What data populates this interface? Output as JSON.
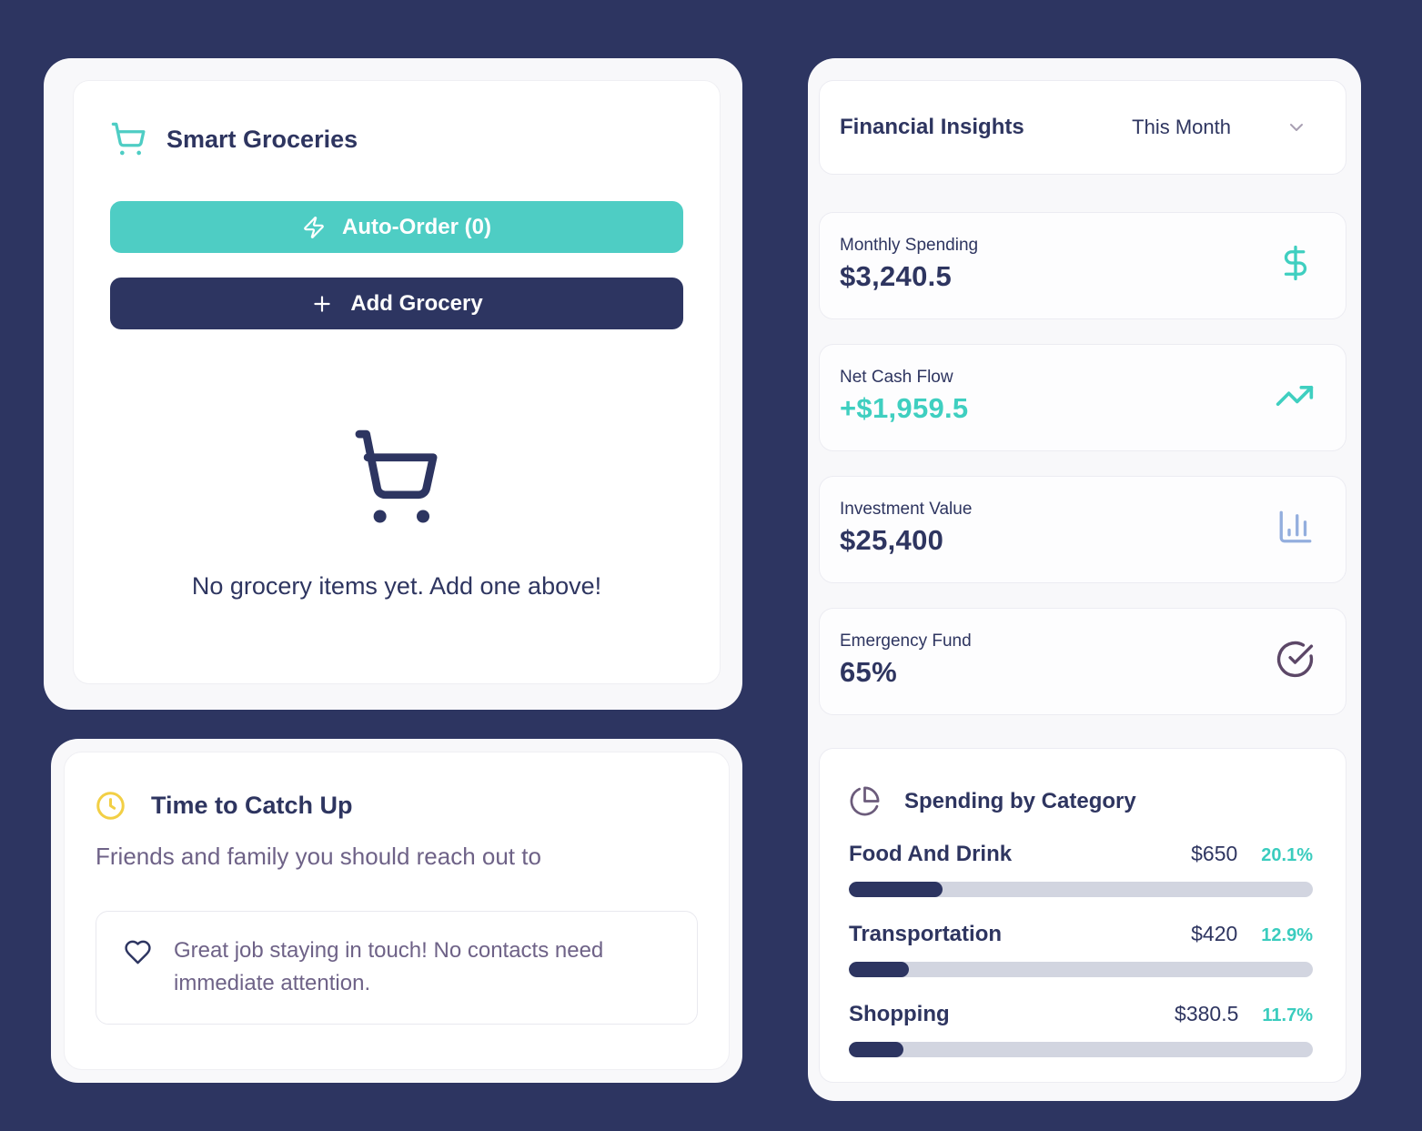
{
  "colors": {
    "background": "#2d3561",
    "teal": "#4ecdc4",
    "navy": "#2e3560",
    "purple_text": "#6e6287",
    "yellow": "#f2cf45",
    "periwinkle": "#93aede",
    "plum": "#5c4767",
    "bar_track": "#d2d5e0",
    "percent_teal": "#3accbe"
  },
  "groceries": {
    "title": "Smart Groceries",
    "auto_order_label": "Auto-Order (0)",
    "add_grocery_label": "Add Grocery",
    "empty_message": "No grocery items yet. Add one above!"
  },
  "catchup": {
    "title": "Time to Catch Up",
    "subtitle": "Friends and family you should reach out to",
    "message": "Great job staying in touch! No contacts need immediate attention."
  },
  "insights": {
    "title": "Financial Insights",
    "period": "This Month",
    "stats": [
      {
        "label": "Monthly Spending",
        "value": "$3,240.5",
        "icon": "dollar-icon"
      },
      {
        "label": "Net Cash Flow",
        "value": "+$1,959.5",
        "icon": "trending-up-icon"
      },
      {
        "label": "Investment Value",
        "value": "$25,400",
        "icon": "bar-chart-icon"
      },
      {
        "label": "Emergency Fund",
        "value": "65%",
        "icon": "check-circle-icon"
      }
    ],
    "spending_by_category": {
      "title": "Spending by Category",
      "categories": [
        {
          "name": "Food And Drink",
          "amount": "$650",
          "percent": "20.1%",
          "percent_value": 20.1
        },
        {
          "name": "Transportation",
          "amount": "$420",
          "percent": "12.9%",
          "percent_value": 12.9
        },
        {
          "name": "Shopping",
          "amount": "$380.5",
          "percent": "11.7%",
          "percent_value": 11.7
        }
      ]
    }
  },
  "icons": {
    "cart": "shopping-cart",
    "zap": "lightning-bolt",
    "plus": "plus-sign",
    "clock": "clock-face",
    "heart": "heart-outline",
    "chevron": "chevron-down",
    "dollar": "dollar-sign",
    "trending_up": "trending-up-arrow",
    "bar_chart": "column-chart",
    "check_circle": "circle-check",
    "pie_chart": "pie-chart"
  }
}
